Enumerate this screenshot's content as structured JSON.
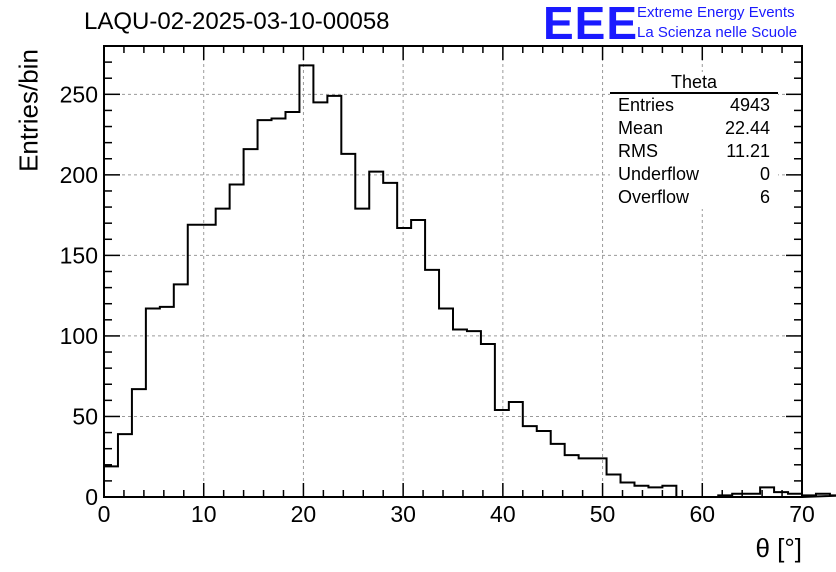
{
  "title": "LAQU-02-2025-03-10-00058",
  "logo": {
    "mark": "EEE",
    "line1": "Extreme Energy Events",
    "line2": "La Scienza nelle Scuole",
    "color": "#1a1aff"
  },
  "stats": {
    "name": "Theta",
    "rows": [
      {
        "label": "Entries",
        "value": "4943"
      },
      {
        "label": "Mean",
        "value": "22.44"
      },
      {
        "label": "RMS",
        "value": "11.21"
      },
      {
        "label": "Underflow",
        "value": "0"
      },
      {
        "label": "Overflow",
        "value": "6"
      }
    ]
  },
  "chart_data": {
    "type": "histogram",
    "xlabel": "θ [°]",
    "ylabel": "Entries/bin",
    "xlim": [
      0,
      70
    ],
    "ylim": [
      0,
      280
    ],
    "bin_width": 1.4,
    "bin_start": 0,
    "x_ticks": [
      0,
      10,
      20,
      30,
      40,
      50,
      60,
      70
    ],
    "y_ticks": [
      0,
      50,
      100,
      150,
      200,
      250
    ],
    "grid": true,
    "line_color": "#000000",
    "values": [
      19,
      39,
      67,
      117,
      118,
      132,
      169,
      169,
      179,
      194,
      216,
      234,
      235,
      239,
      268,
      245,
      249,
      213,
      179,
      202,
      195,
      167,
      172,
      141,
      117,
      104,
      103,
      95,
      54,
      59,
      44,
      41,
      33,
      26,
      24,
      24,
      14,
      9,
      7,
      6,
      7,
      0,
      0,
      0,
      1,
      2,
      2,
      6,
      3,
      2,
      1,
      2,
      1
    ]
  }
}
